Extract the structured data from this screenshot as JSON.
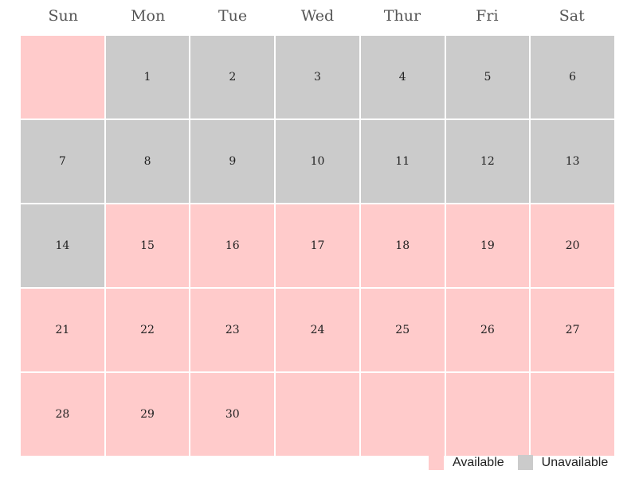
{
  "weekdays": [
    "Sun",
    "Mon",
    "Tue",
    "Wed",
    "Thur",
    "Fri",
    "Sat"
  ],
  "colors": {
    "available": "#ffcbcb",
    "unavailable": "#cbcbcb"
  },
  "days": [
    {
      "label": "",
      "status": "available"
    },
    {
      "label": "1",
      "status": "unavailable"
    },
    {
      "label": "2",
      "status": "unavailable"
    },
    {
      "label": "3",
      "status": "unavailable"
    },
    {
      "label": "4",
      "status": "unavailable"
    },
    {
      "label": "5",
      "status": "unavailable"
    },
    {
      "label": "6",
      "status": "unavailable"
    },
    {
      "label": "7",
      "status": "unavailable"
    },
    {
      "label": "8",
      "status": "unavailable"
    },
    {
      "label": "9",
      "status": "unavailable"
    },
    {
      "label": "10",
      "status": "unavailable"
    },
    {
      "label": "11",
      "status": "unavailable"
    },
    {
      "label": "12",
      "status": "unavailable"
    },
    {
      "label": "13",
      "status": "unavailable"
    },
    {
      "label": "14",
      "status": "unavailable"
    },
    {
      "label": "15",
      "status": "available"
    },
    {
      "label": "16",
      "status": "available"
    },
    {
      "label": "17",
      "status": "available"
    },
    {
      "label": "18",
      "status": "available"
    },
    {
      "label": "19",
      "status": "available"
    },
    {
      "label": "20",
      "status": "available"
    },
    {
      "label": "21",
      "status": "available"
    },
    {
      "label": "22",
      "status": "available"
    },
    {
      "label": "23",
      "status": "available"
    },
    {
      "label": "24",
      "status": "available"
    },
    {
      "label": "25",
      "status": "available"
    },
    {
      "label": "26",
      "status": "available"
    },
    {
      "label": "27",
      "status": "available"
    },
    {
      "label": "28",
      "status": "available"
    },
    {
      "label": "29",
      "status": "available"
    },
    {
      "label": "30",
      "status": "available"
    },
    {
      "label": "",
      "status": "available"
    },
    {
      "label": "",
      "status": "available"
    },
    {
      "label": "",
      "status": "available"
    },
    {
      "label": "",
      "status": "available"
    }
  ],
  "legend": {
    "available_label": "Available",
    "unavailable_label": "Unavailable"
  }
}
